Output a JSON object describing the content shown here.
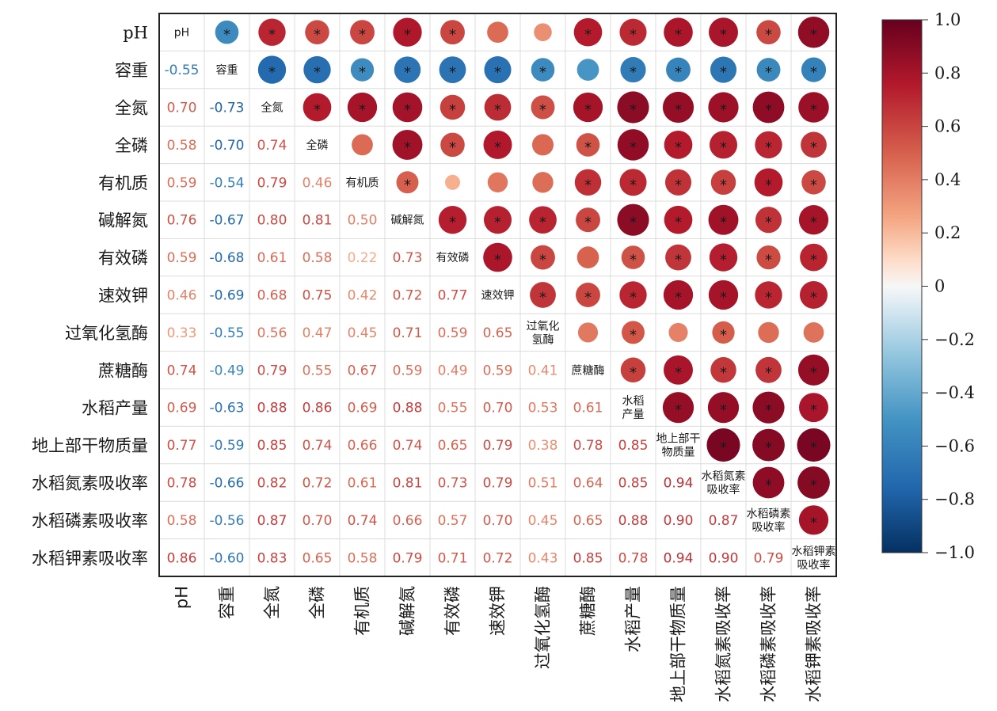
{
  "chart_data": {
    "type": "heatmap",
    "variables": [
      "pH",
      "容重",
      "全氮",
      "全磷",
      "有机质",
      "碱解氮",
      "有效磷",
      "速效钾",
      "过氧化氢酶",
      "蔗糖酶",
      "水稻产量",
      "地上部干物质量",
      "水稻氮素吸收率",
      "水稻磷素吸收率",
      "水稻钾素吸收率"
    ],
    "diagonal_labels": [
      [
        "pH"
      ],
      [
        "容重"
      ],
      [
        "全氮"
      ],
      [
        "全磷"
      ],
      [
        "有机质"
      ],
      [
        "碱解氮"
      ],
      [
        "有效磷"
      ],
      [
        "速效钾"
      ],
      [
        "过氧化",
        "氢酶"
      ],
      [
        "蔗糖酶"
      ],
      [
        "水稻",
        "产量"
      ],
      [
        "地上部干",
        "物质量"
      ],
      [
        "水稻氮素",
        "吸收率"
      ],
      [
        "水稻磷素",
        "吸收率"
      ],
      [
        "水稻钾素",
        "吸收率"
      ]
    ],
    "lower_triangle_values": [
      [],
      [
        -0.55
      ],
      [
        0.7,
        -0.73
      ],
      [
        0.58,
        -0.7,
        0.74
      ],
      [
        0.59,
        -0.54,
        0.79,
        0.46
      ],
      [
        0.76,
        -0.67,
        0.8,
        0.81,
        0.5
      ],
      [
        0.59,
        -0.68,
        0.61,
        0.58,
        0.22,
        0.73
      ],
      [
        0.46,
        -0.69,
        0.68,
        0.75,
        0.42,
        0.72,
        0.77
      ],
      [
        0.33,
        -0.55,
        0.56,
        0.47,
        0.45,
        0.71,
        0.59,
        0.65
      ],
      [
        0.74,
        -0.49,
        0.79,
        0.55,
        0.67,
        0.59,
        0.49,
        0.59,
        0.41
      ],
      [
        0.69,
        -0.63,
        0.88,
        0.86,
        0.69,
        0.88,
        0.55,
        0.7,
        0.53,
        0.61
      ],
      [
        0.77,
        -0.59,
        0.85,
        0.74,
        0.66,
        0.74,
        0.65,
        0.79,
        0.38,
        0.78,
        0.85
      ],
      [
        0.78,
        -0.66,
        0.82,
        0.72,
        0.61,
        0.81,
        0.73,
        0.79,
        0.51,
        0.64,
        0.85,
        0.94
      ],
      [
        0.58,
        -0.56,
        0.87,
        0.7,
        0.74,
        0.66,
        0.57,
        0.7,
        0.45,
        0.65,
        0.88,
        0.9,
        0.87
      ],
      [
        0.86,
        -0.6,
        0.83,
        0.65,
        0.58,
        0.79,
        0.71,
        0.72,
        0.43,
        0.85,
        0.78,
        0.94,
        0.9,
        0.79
      ]
    ],
    "upper_triangle_shown_as": "circles (size and color = correlation)",
    "significance_marker": "*",
    "colorbar": {
      "range": [
        -1.0,
        1.0
      ],
      "ticks": [
        "1.0",
        "0.8",
        "0.6",
        "0.4",
        "0.2",
        "0",
        "−0.2",
        "−0.4",
        "−0.6",
        "−0.8",
        "−1.0"
      ]
    },
    "colors": {
      "negative": "#053061",
      "zero": "#f7f7f7",
      "positive": "#67001f"
    }
  }
}
